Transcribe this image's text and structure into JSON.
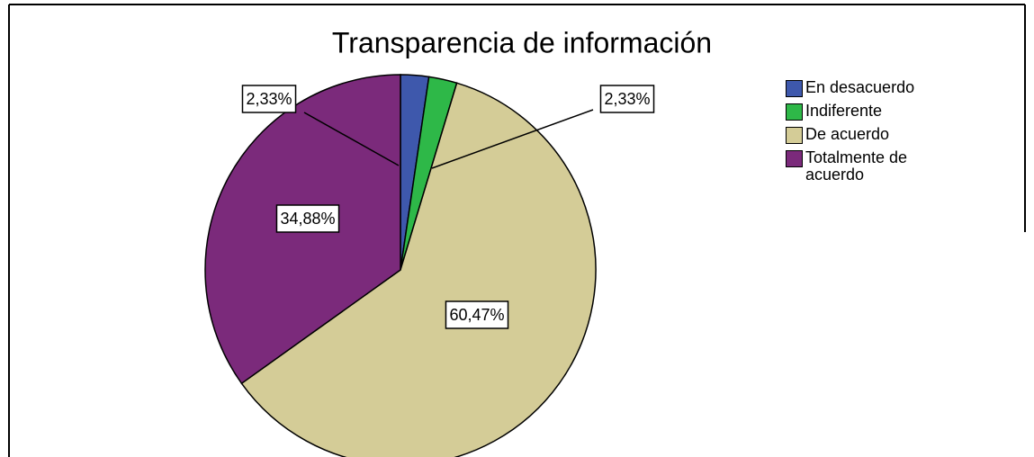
{
  "chart_data": {
    "type": "pie",
    "title": "Transparencia de información",
    "categories": [
      "En desacuerdo",
      "Indiferente",
      "De acuerdo",
      "Totalmente de acuerdo"
    ],
    "values": [
      2.33,
      2.33,
      60.47,
      34.88
    ],
    "value_labels": [
      "2,33%",
      "2,33%",
      "60,47%",
      "34,88%"
    ],
    "colors": [
      "#3e58ac",
      "#2eb848",
      "#d4cc97",
      "#7b2a7b"
    ],
    "legend": "right"
  }
}
